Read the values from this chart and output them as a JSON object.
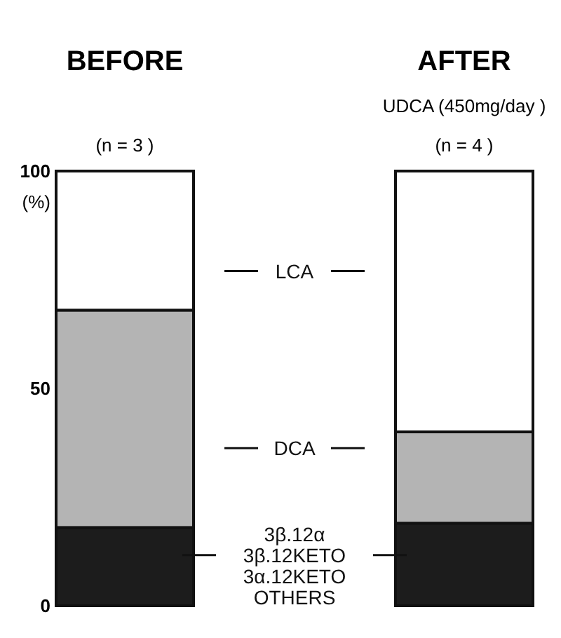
{
  "chart_data": {
    "type": "bar",
    "stacked": true,
    "categories": [
      "BEFORE",
      "AFTER"
    ],
    "ylabel": "(%)",
    "ylim": [
      0,
      100
    ],
    "yticks": [
      0,
      50,
      100
    ],
    "grid": false,
    "series": [
      {
        "name": "3β.12α\n3β.12KETO\n3α.12KETO\nOTHERS",
        "color": "#1c1c1c",
        "values": [
          18,
          19
        ]
      },
      {
        "name": "DCA",
        "color": "#b4b4b4",
        "values": [
          50,
          21
        ]
      },
      {
        "name": "LCA",
        "color": "#ffffff",
        "values": [
          32,
          60
        ]
      }
    ],
    "legend": "center",
    "annotations": [
      "UDCA (450mg/day )",
      "(n = 3 )",
      "(n = 4 )"
    ]
  }
}
